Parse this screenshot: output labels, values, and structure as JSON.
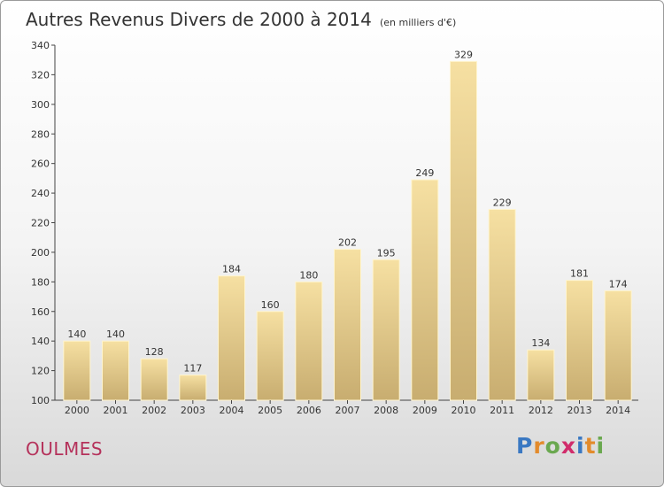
{
  "title": "Autres Revenus Divers de 2000 à 2014",
  "subtitle": "(en milliers d'€)",
  "town": "OULMES",
  "logo": {
    "letters": [
      "P",
      "r",
      "o",
      "x",
      "i",
      "t",
      "i"
    ],
    "colors": [
      "#3a78c2",
      "#e38b2c",
      "#6aa84f",
      "#d12c6b",
      "#3a78c2",
      "#e38b2c",
      "#6aa84f"
    ]
  },
  "colors": {
    "bar_top": "#f6e0a2",
    "bar_bottom": "#c8ad70",
    "bar_edge": "#fff5cf",
    "axis": "#444444",
    "title": "#333333",
    "town": "#b5325b"
  },
  "chart_data": {
    "type": "bar",
    "title": "Autres Revenus Divers de 2000 à 2014",
    "subtitle": "(en milliers d'€)",
    "categories": [
      "2000",
      "2001",
      "2002",
      "2003",
      "2004",
      "2005",
      "2006",
      "2007",
      "2008",
      "2009",
      "2010",
      "2011",
      "2012",
      "2013",
      "2014"
    ],
    "values": [
      140,
      140,
      128,
      117,
      184,
      160,
      180,
      202,
      195,
      249,
      329,
      229,
      134,
      181,
      174
    ],
    "ylim": [
      100,
      340
    ],
    "yticks": [
      100,
      120,
      140,
      160,
      180,
      200,
      220,
      240,
      260,
      280,
      300,
      320,
      340
    ],
    "grid": false,
    "data_labels": true
  }
}
